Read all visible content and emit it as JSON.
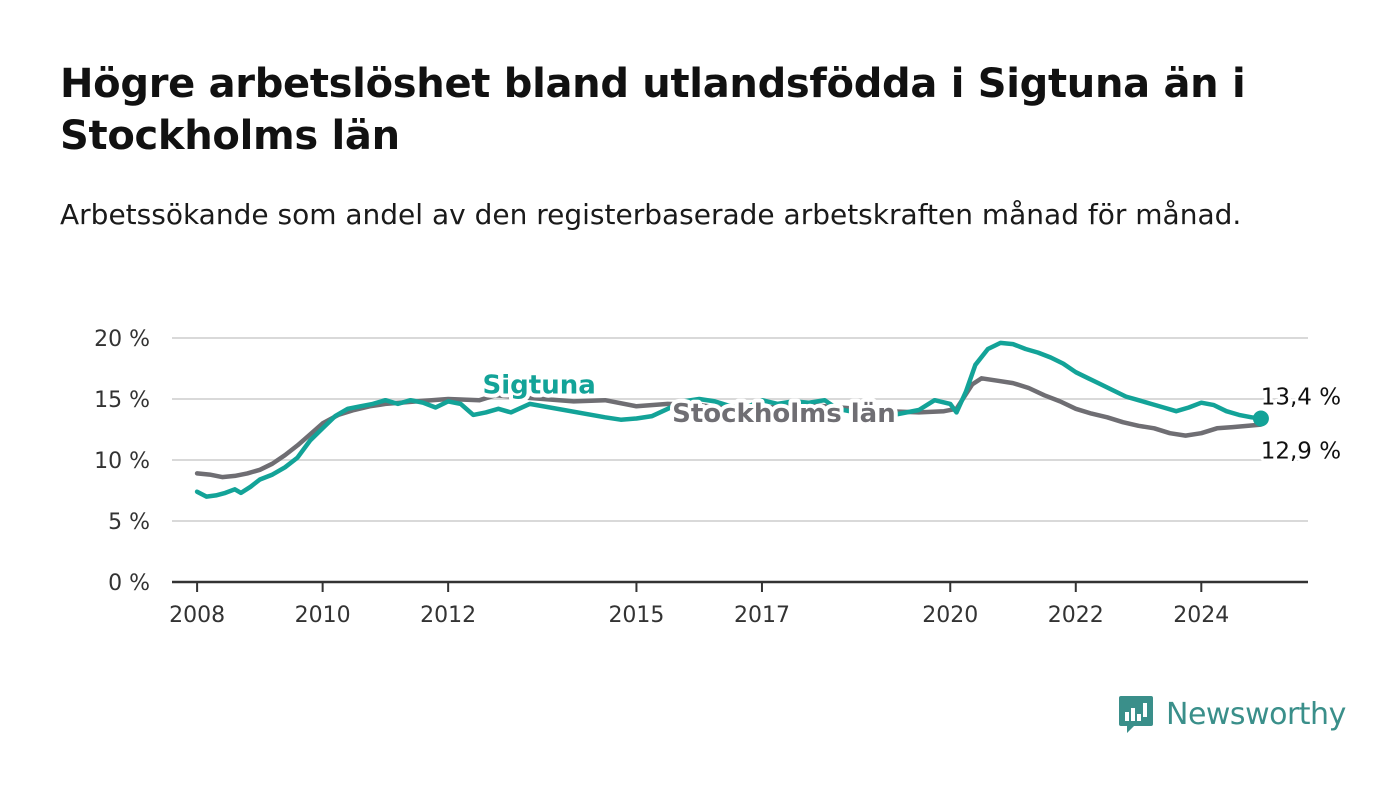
{
  "header": {
    "title": "Högre arbetslöshet bland utlandsfödda i Sigtuna än i Stockholms län",
    "subtitle": "Arbetssökande som andel av den registerbaserade arbetskraften månad för månad."
  },
  "branding": {
    "logo_text": "Newsworthy",
    "color": "#3a8f8a"
  },
  "chart_data": {
    "type": "line",
    "title": "Högre arbetslöshet bland utlandsfödda i Sigtuna än i Stockholms län",
    "subtitle": "Arbetssökande som andel av den registerbaserade arbetskraften månad för månad.",
    "xlabel": "",
    "ylabel": "",
    "xlim": [
      2007.6,
      2025.7
    ],
    "ylim": [
      0,
      20
    ],
    "x_ticks": [
      2008,
      2010,
      2012,
      2015,
      2017,
      2020,
      2022,
      2024
    ],
    "x_tick_labels": [
      "2008",
      "2010",
      "2012",
      "2015",
      "2017",
      "2020",
      "2022",
      "2024"
    ],
    "y_ticks": [
      0,
      5,
      10,
      15,
      20
    ],
    "y_tick_labels": [
      "0 %",
      "5 %",
      "10 %",
      "15 %",
      "20 %"
    ],
    "grid": "horizontal",
    "legend": "inline labels",
    "series": [
      {
        "name": "Stockholms län",
        "color": "#6f6e73",
        "label_at": [
          2017.35,
          13.1
        ],
        "end_label": "12,9 %",
        "points": [
          [
            2008.0,
            8.9
          ],
          [
            2008.2,
            8.8
          ],
          [
            2008.4,
            8.6
          ],
          [
            2008.6,
            8.7
          ],
          [
            2008.8,
            8.9
          ],
          [
            2009.0,
            9.2
          ],
          [
            2009.2,
            9.7
          ],
          [
            2009.4,
            10.4
          ],
          [
            2009.6,
            11.2
          ],
          [
            2009.8,
            12.1
          ],
          [
            2010.0,
            13.0
          ],
          [
            2010.25,
            13.7
          ],
          [
            2010.5,
            14.1
          ],
          [
            2010.75,
            14.4
          ],
          [
            2011.0,
            14.6
          ],
          [
            2011.5,
            14.8
          ],
          [
            2012.0,
            15.0
          ],
          [
            2012.5,
            14.9
          ],
          [
            2012.75,
            15.3
          ],
          [
            2014.0,
            14.8
          ],
          [
            2014.5,
            14.9
          ],
          [
            2015.0,
            14.4
          ],
          [
            2015.5,
            14.6
          ],
          [
            2016.0,
            14.5
          ],
          [
            2016.5,
            14.2
          ],
          [
            2017.0,
            14.3
          ],
          [
            2017.5,
            14.4
          ],
          [
            2017.8,
            14.5
          ],
          [
            2018.0,
            14.4
          ],
          [
            2018.5,
            14.2
          ],
          [
            2019.0,
            14.0
          ],
          [
            2019.5,
            13.9
          ],
          [
            2019.9,
            14.0
          ],
          [
            2020.1,
            14.2
          ],
          [
            2020.35,
            16.2
          ],
          [
            2020.5,
            16.7
          ],
          [
            2020.75,
            16.5
          ],
          [
            2021.0,
            16.3
          ],
          [
            2021.25,
            15.9
          ],
          [
            2021.5,
            15.3
          ],
          [
            2021.75,
            14.8
          ],
          [
            2022.0,
            14.2
          ],
          [
            2022.25,
            13.8
          ],
          [
            2022.5,
            13.5
          ],
          [
            2022.75,
            13.1
          ],
          [
            2023.0,
            12.8
          ],
          [
            2023.25,
            12.6
          ],
          [
            2023.5,
            12.2
          ],
          [
            2023.75,
            12.0
          ],
          [
            2024.0,
            12.2
          ],
          [
            2024.25,
            12.6
          ],
          [
            2024.5,
            12.7
          ],
          [
            2024.75,
            12.8
          ],
          [
            2024.95,
            12.9
          ]
        ]
      },
      {
        "name": "Sigtuna",
        "color": "#13a398",
        "label_at": [
          2013.45,
          15.45
        ],
        "end_label": "13,4 %",
        "points": [
          [
            2008.0,
            7.4
          ],
          [
            2008.15,
            7.0
          ],
          [
            2008.3,
            7.1
          ],
          [
            2008.45,
            7.3
          ],
          [
            2008.6,
            7.6
          ],
          [
            2008.7,
            7.3
          ],
          [
            2008.85,
            7.8
          ],
          [
            2009.0,
            8.4
          ],
          [
            2009.2,
            8.8
          ],
          [
            2009.4,
            9.4
          ],
          [
            2009.6,
            10.2
          ],
          [
            2009.8,
            11.6
          ],
          [
            2010.0,
            12.6
          ],
          [
            2010.2,
            13.6
          ],
          [
            2010.4,
            14.2
          ],
          [
            2010.6,
            14.4
          ],
          [
            2010.8,
            14.6
          ],
          [
            2011.0,
            14.9
          ],
          [
            2011.2,
            14.6
          ],
          [
            2011.4,
            14.9
          ],
          [
            2011.6,
            14.7
          ],
          [
            2011.8,
            14.3
          ],
          [
            2012.0,
            14.8
          ],
          [
            2012.2,
            14.6
          ],
          [
            2012.4,
            13.7
          ],
          [
            2012.6,
            13.9
          ],
          [
            2012.8,
            14.2
          ],
          [
            2013.0,
            13.9
          ],
          [
            2013.3,
            14.6
          ],
          [
            2014.5,
            13.5
          ],
          [
            2014.75,
            13.3
          ],
          [
            2015.0,
            13.4
          ],
          [
            2015.25,
            13.6
          ],
          [
            2015.5,
            14.2
          ],
          [
            2015.75,
            14.8
          ],
          [
            2016.0,
            15.0
          ],
          [
            2016.25,
            14.8
          ],
          [
            2016.5,
            14.4
          ],
          [
            2016.75,
            14.3
          ],
          [
            2017.0,
            14.9
          ],
          [
            2017.25,
            14.6
          ],
          [
            2017.5,
            14.8
          ],
          [
            2017.75,
            14.7
          ],
          [
            2018.0,
            14.9
          ],
          [
            2018.2,
            14.2
          ],
          [
            2018.5,
            13.9
          ],
          [
            2019.0,
            13.6
          ],
          [
            2019.5,
            14.1
          ],
          [
            2019.75,
            14.9
          ],
          [
            2020.0,
            14.6
          ],
          [
            2020.1,
            13.9
          ],
          [
            2020.25,
            15.6
          ],
          [
            2020.4,
            17.8
          ],
          [
            2020.6,
            19.1
          ],
          [
            2020.8,
            19.6
          ],
          [
            2021.0,
            19.5
          ],
          [
            2021.2,
            19.1
          ],
          [
            2021.4,
            18.8
          ],
          [
            2021.6,
            18.4
          ],
          [
            2021.8,
            17.9
          ],
          [
            2022.0,
            17.2
          ],
          [
            2022.2,
            16.7
          ],
          [
            2022.4,
            16.2
          ],
          [
            2022.6,
            15.7
          ],
          [
            2022.8,
            15.2
          ],
          [
            2023.0,
            14.9
          ],
          [
            2023.2,
            14.6
          ],
          [
            2023.4,
            14.3
          ],
          [
            2023.6,
            14.0
          ],
          [
            2023.8,
            14.3
          ],
          [
            2024.0,
            14.7
          ],
          [
            2024.2,
            14.5
          ],
          [
            2024.4,
            14.0
          ],
          [
            2024.6,
            13.7
          ],
          [
            2024.8,
            13.5
          ],
          [
            2024.95,
            13.4
          ]
        ]
      }
    ]
  }
}
